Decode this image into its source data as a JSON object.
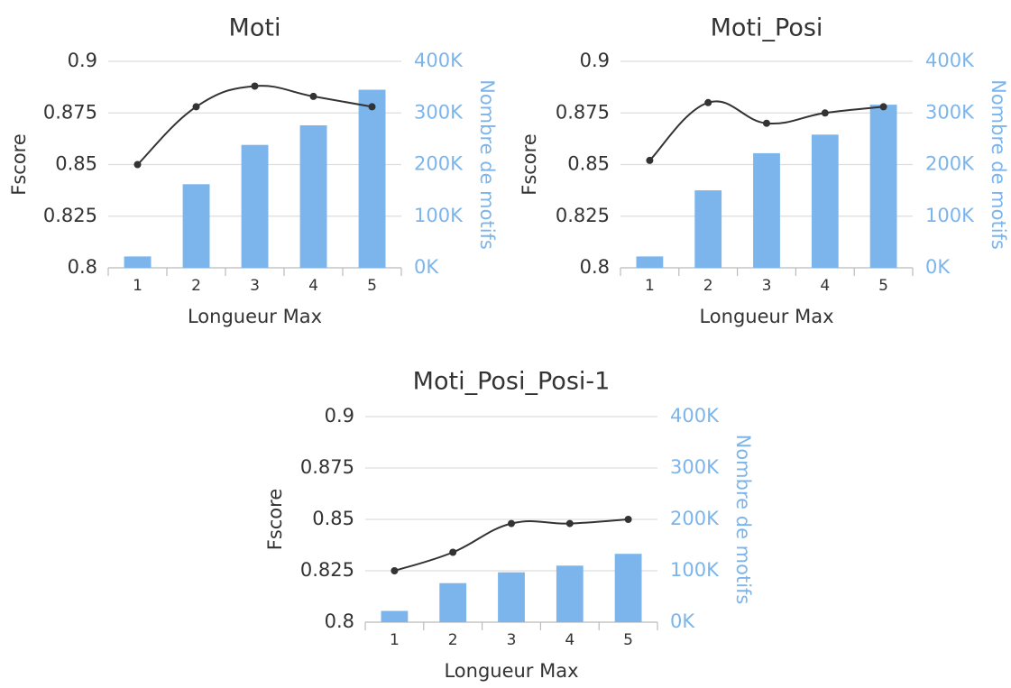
{
  "chart_data": [
    {
      "type": "bar+line",
      "title": "Moti",
      "xlabel": "Longueur Max",
      "ylabel": "Fscore",
      "y2label": "Nombre de motifs",
      "categories": [
        "1",
        "2",
        "3",
        "4",
        "5"
      ],
      "ylim": [
        0.8,
        0.9
      ],
      "yticks": [
        "0.8",
        "0.825",
        "0.85",
        "0.875",
        "0.9"
      ],
      "y2lim": [
        0,
        400000
      ],
      "y2ticks": [
        "0K",
        "100K",
        "200K",
        "300K",
        "400K"
      ],
      "series": [
        {
          "name": "Nombre de motifs",
          "type": "bar",
          "axis": "y2",
          "values": [
            22000,
            162000,
            238000,
            276000,
            345000
          ]
        },
        {
          "name": "Fscore",
          "type": "line",
          "axis": "y",
          "values": [
            0.85,
            0.878,
            0.888,
            0.883,
            0.878
          ]
        }
      ],
      "grid": true,
      "colors": {
        "bar": "#7cb5ec",
        "line": "#333333"
      }
    },
    {
      "type": "bar+line",
      "title": "Moti_Posi",
      "xlabel": "Longueur Max",
      "ylabel": "Fscore",
      "y2label": "Nombre de motifs",
      "categories": [
        "1",
        "2",
        "3",
        "4",
        "5"
      ],
      "ylim": [
        0.8,
        0.9
      ],
      "yticks": [
        "0.8",
        "0.825",
        "0.85",
        "0.875",
        "0.9"
      ],
      "y2lim": [
        0,
        400000
      ],
      "y2ticks": [
        "0K",
        "100K",
        "200K",
        "300K",
        "400K"
      ],
      "series": [
        {
          "name": "Nombre de motifs",
          "type": "bar",
          "axis": "y2",
          "values": [
            22000,
            150000,
            222000,
            258000,
            316000
          ]
        },
        {
          "name": "Fscore",
          "type": "line",
          "axis": "y",
          "values": [
            0.852,
            0.88,
            0.87,
            0.875,
            0.878
          ]
        }
      ],
      "grid": true,
      "colors": {
        "bar": "#7cb5ec",
        "line": "#333333"
      }
    },
    {
      "type": "bar+line",
      "title": "Moti_Posi_Posi-1",
      "xlabel": "Longueur Max",
      "ylabel": "Fscore",
      "y2label": "Nombre de motifs",
      "categories": [
        "1",
        "2",
        "3",
        "4",
        "5"
      ],
      "ylim": [
        0.8,
        0.9
      ],
      "yticks": [
        "0.8",
        "0.825",
        "0.85",
        "0.875",
        "0.9"
      ],
      "y2lim": [
        0,
        400000
      ],
      "y2ticks": [
        "0K",
        "100K",
        "200K",
        "300K",
        "400K"
      ],
      "series": [
        {
          "name": "Nombre de motifs",
          "type": "bar",
          "axis": "y2",
          "values": [
            22000,
            76000,
            97000,
            110000,
            133000
          ]
        },
        {
          "name": "Fscore",
          "type": "line",
          "axis": "y",
          "values": [
            0.825,
            0.834,
            0.848,
            0.848,
            0.85
          ]
        }
      ],
      "grid": true,
      "colors": {
        "bar": "#7cb5ec",
        "line": "#333333"
      }
    }
  ]
}
